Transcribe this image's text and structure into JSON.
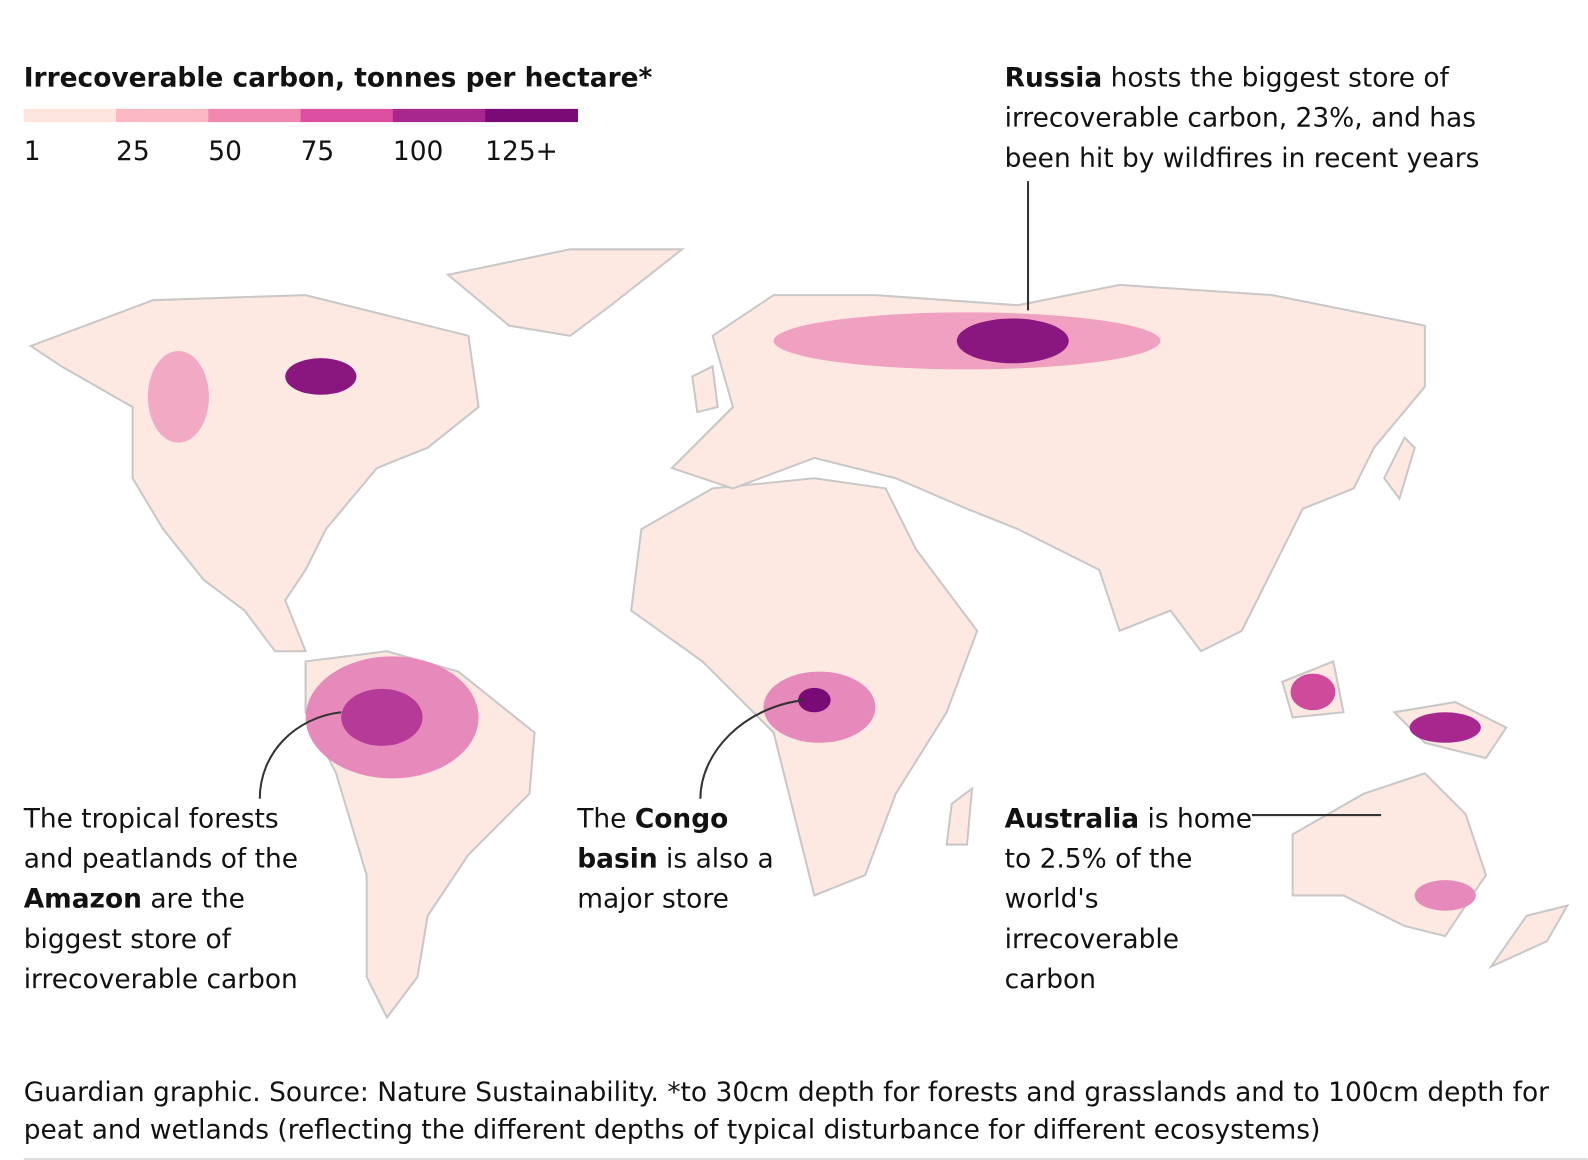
{
  "legend": {
    "title": "Irrecoverable carbon, tonnes per hectare*",
    "stops": [
      {
        "label": "1",
        "color": "#fde4dc"
      },
      {
        "label": "25",
        "color": "#f9b8c4"
      },
      {
        "label": "50",
        "color": "#f088b0"
      },
      {
        "label": "75",
        "color": "#dc4ea0"
      },
      {
        "label": "100",
        "color": "#a8278f"
      },
      {
        "label": "125+",
        "color": "#7a0a75"
      }
    ]
  },
  "annotations": [
    {
      "lines": [
        [
          {
            "text": "Russia",
            "bold": true
          },
          {
            "text": " hosts the biggest store of"
          }
        ],
        [
          {
            "text": "irrecoverable carbon, 23%, and has"
          }
        ],
        [
          {
            "text": "been hit by wildfires in recent years"
          }
        ]
      ]
    },
    {
      "lines": [
        [
          {
            "text": "The tropical forests"
          }
        ],
        [
          {
            "text": "and peatlands of the"
          }
        ],
        [
          {
            "text": "Amazon",
            "bold": true
          },
          {
            "text": " are the"
          }
        ],
        [
          {
            "text": "biggest store of"
          }
        ],
        [
          {
            "text": "irrecoverable carbon"
          }
        ]
      ]
    },
    {
      "lines": [
        [
          {
            "text": "The "
          },
          {
            "text": "Congo",
            "bold": true
          }
        ],
        [
          {
            "text": "basin",
            "bold": true
          },
          {
            "text": " is also a"
          }
        ],
        [
          {
            "text": "major store"
          }
        ]
      ]
    },
    {
      "lines": [
        [
          {
            "text": "Australia",
            "bold": true
          },
          {
            "text": " is home"
          }
        ],
        [
          {
            "text": "to 2.5% of the"
          }
        ],
        [
          {
            "text": "world's"
          }
        ],
        [
          {
            "text": "irrecoverable"
          }
        ],
        [
          {
            "text": "carbon"
          }
        ]
      ]
    }
  ],
  "source": [
    "Guardian graphic. Source: Nature Sustainability. *to 30cm depth for forests and grasslands and to 100cm depth for",
    "peat and wetlands (reflecting the different depths of typical disturbance for different ecosystems)"
  ]
}
